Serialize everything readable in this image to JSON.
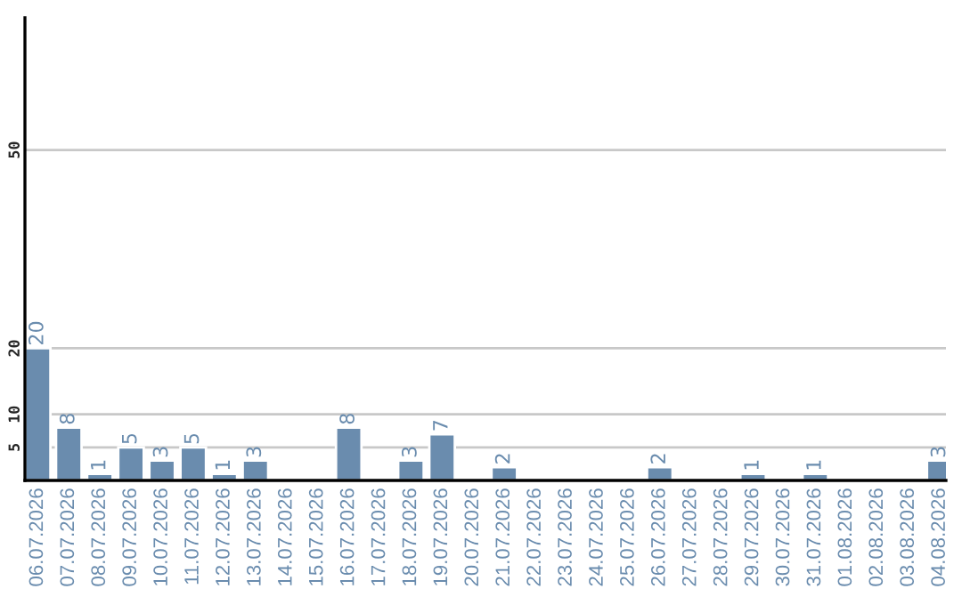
{
  "chart_data": {
    "type": "bar",
    "categories": [
      "06.07.2026",
      "07.07.2026",
      "08.07.2026",
      "09.07.2026",
      "10.07.2026",
      "11.07.2026",
      "12.07.2026",
      "13.07.2026",
      "14.07.2026",
      "15.07.2026",
      "16.07.2026",
      "17.07.2026",
      "18.07.2026",
      "19.07.2026",
      "20.07.2026",
      "21.07.2026",
      "22.07.2026",
      "23.07.2026",
      "24.07.2026",
      "25.07.2026",
      "26.07.2026",
      "27.07.2026",
      "28.07.2026",
      "29.07.2026",
      "30.07.2026",
      "31.07.2026",
      "01.08.2026",
      "02.08.2026",
      "03.08.2026",
      "04.08.2026"
    ],
    "values": [
      20,
      8,
      1,
      5,
      3,
      5,
      1,
      3,
      null,
      null,
      8,
      null,
      3,
      7,
      null,
      2,
      null,
      null,
      null,
      null,
      2,
      null,
      null,
      1,
      null,
      1,
      null,
      null,
      null,
      3
    ],
    "value_labels": [
      "20",
      "8",
      "1",
      "5",
      "3",
      "5",
      "1",
      "3",
      null,
      null,
      "8",
      null,
      "3",
      "7",
      null,
      "2",
      null,
      null,
      null,
      null,
      "2",
      null,
      null,
      "1",
      null,
      "1",
      null,
      null,
      null,
      "3"
    ],
    "color": "#6a8cae",
    "ylim": [
      0,
      70
    ],
    "yticks": [
      5,
      10,
      20,
      50
    ],
    "grid": "y"
  }
}
